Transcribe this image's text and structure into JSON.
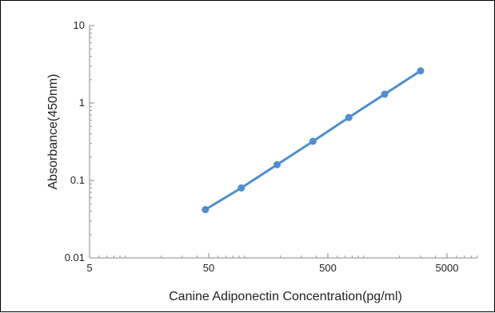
{
  "chart_data": {
    "type": "line",
    "xscale": "log",
    "yscale": "log",
    "xlabel": "Canine Adiponectin Concentration(pg/ml)",
    "ylabel": "Absorbance(450nm)",
    "xlim": [
      5,
      9000
    ],
    "ylim": [
      0.01,
      10
    ],
    "xticks": [
      {
        "value": 5,
        "label": "5"
      },
      {
        "value": 50,
        "label": "50"
      },
      {
        "value": 500,
        "label": "500"
      },
      {
        "value": 5000,
        "label": "5000"
      }
    ],
    "yticks": [
      {
        "value": 0.01,
        "label": "0.01"
      },
      {
        "value": 0.1,
        "label": "0.1"
      },
      {
        "value": 1,
        "label": "1"
      },
      {
        "value": 10,
        "label": "10"
      }
    ],
    "series": [
      {
        "color": "#4f8ed0",
        "x": [
          46.9,
          93.8,
          187.5,
          375,
          750,
          1500,
          3000
        ],
        "y": [
          0.042,
          0.08,
          0.16,
          0.32,
          0.65,
          1.3,
          2.6
        ]
      }
    ],
    "grid": false,
    "legend": "none"
  }
}
